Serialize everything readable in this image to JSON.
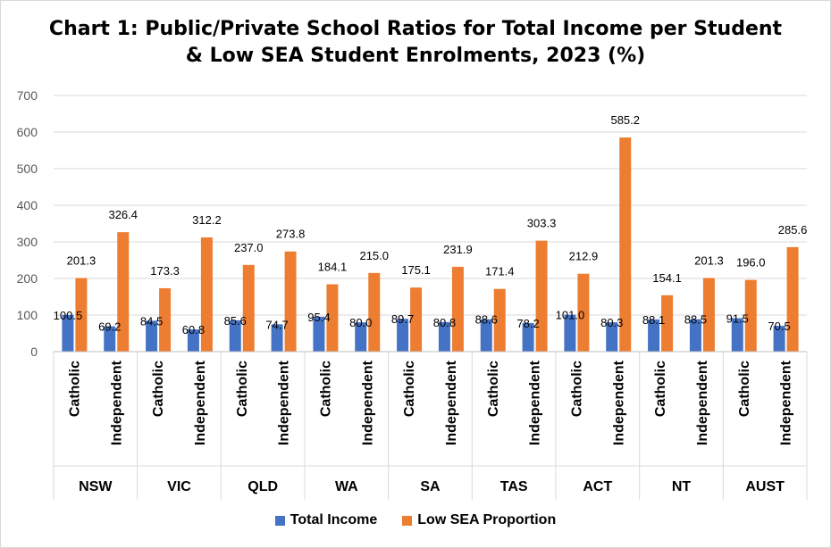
{
  "chart_data": {
    "type": "bar",
    "title_line1": "Chart 1: Public/Private School Ratios for Total Income per Student",
    "title_line2": "& Low SEA Student Enrolments, 2023 (%)",
    "ylim": [
      0,
      700
    ],
    "yticks": [
      "0",
      "100",
      "200",
      "300",
      "400",
      "500",
      "600",
      "700"
    ],
    "grid": true,
    "legend_position": "bottom",
    "groups": [
      "NSW",
      "VIC",
      "QLD",
      "WA",
      "SA",
      "TAS",
      "ACT",
      "NT",
      "AUST"
    ],
    "subcategories": [
      "Catholic",
      "Independent"
    ],
    "series": [
      {
        "name": "Total Income",
        "color": "#4472C4",
        "values": [
          100.5,
          69.2,
          84.5,
          60.8,
          85.6,
          74.7,
          95.4,
          80.0,
          89.7,
          80.8,
          88.6,
          78.2,
          101.0,
          80.3,
          88.1,
          88.5,
          91.5,
          70.5
        ],
        "labels": [
          "100.5",
          "69.2",
          "84.5",
          "60.8",
          "85.6",
          "74.7",
          "95.4",
          "80.0",
          "89.7",
          "80.8",
          "88.6",
          "78.2",
          "101.0",
          "80.3",
          "88.1",
          "88.5",
          "91.5",
          "70.5"
        ]
      },
      {
        "name": "Low SEA Proportion",
        "color": "#ED7D31",
        "values": [
          201.3,
          326.4,
          173.3,
          312.2,
          237.0,
          273.8,
          184.1,
          215.0,
          175.1,
          231.9,
          171.4,
          303.3,
          212.9,
          585.2,
          154.1,
          201.3,
          196.0,
          285.6
        ],
        "labels": [
          "201.3",
          "326.4",
          "173.3",
          "312.2",
          "237.0",
          "273.8",
          "184.1",
          "215.0",
          "175.1",
          "231.9",
          "171.4",
          "303.3",
          "212.9",
          "585.2",
          "154.1",
          "201.3",
          "196.0",
          "285.6"
        ]
      }
    ]
  }
}
